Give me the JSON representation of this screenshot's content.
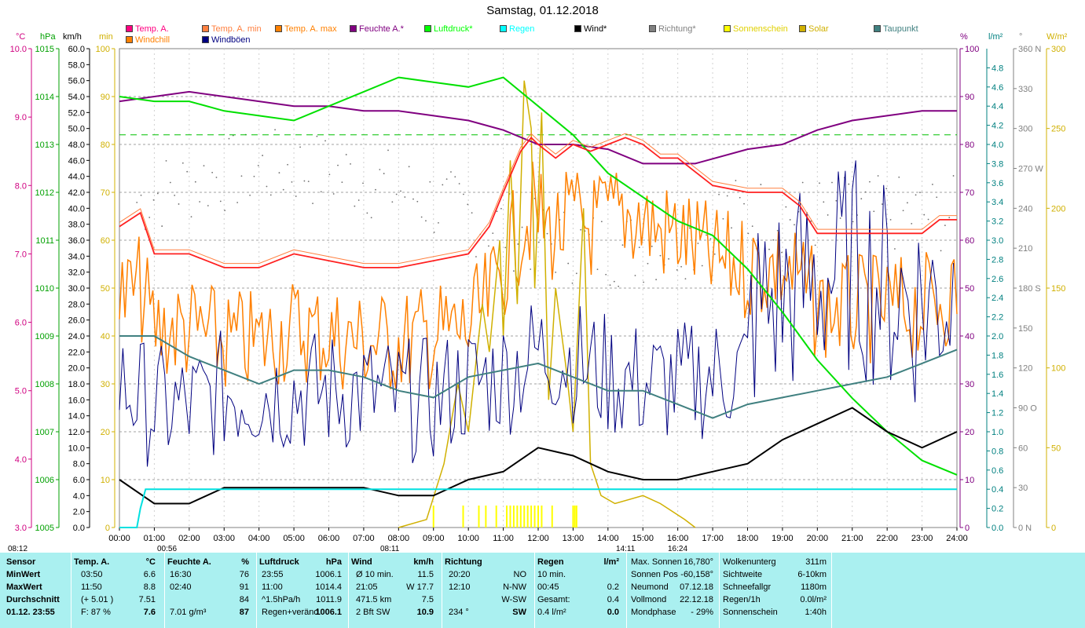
{
  "title": "Samstag, 01.12.2018",
  "legend": [
    {
      "label": "Temp. A.",
      "color": "#ff0080"
    },
    {
      "label": "Temp. A. min",
      "color": "#ff8040"
    },
    {
      "label": "Temp. A. max",
      "color": "#ff8000"
    },
    {
      "label": "Feuchte A.*",
      "color": "#800080"
    },
    {
      "label": "Luftdruck*",
      "color": "#00ff00"
    },
    {
      "label": "Regen",
      "color": "#00ffff"
    },
    {
      "label": "Wind*",
      "color": "#000000"
    },
    {
      "label": "Richtung*",
      "color": "#808080"
    },
    {
      "label": "Sonnenschein",
      "color": "#ffff00"
    },
    {
      "label": "Solar",
      "color": "#d0b000"
    },
    {
      "label": "Taupunkt",
      "color": "#408080"
    },
    {
      "label": "Windchill",
      "color": "#ff8000"
    },
    {
      "label": "Windböen",
      "color": "#000080"
    }
  ],
  "axis_units": {
    "temp": "°C",
    "press": "hPa",
    "wind": "km/h",
    "sun": "min",
    "hum": "%",
    "rain": "l/m²",
    "dir": "°",
    "solar": "W/m²"
  },
  "chart_data": {
    "type": "line",
    "title": "Samstag, 01.12.2018",
    "x": {
      "ticks": [
        "00:00",
        "01:00",
        "02:00",
        "03:00",
        "04:00",
        "05:00",
        "06:00",
        "07:00",
        "08:00",
        "09:00",
        "10:00",
        "11:00",
        "12:00",
        "13:00",
        "14:00",
        "15:00",
        "16:00",
        "17:00",
        "18:00",
        "19:00",
        "20:00",
        "21:00",
        "22:00",
        "23:00",
        "24:00"
      ],
      "range_h": [
        0,
        24
      ]
    },
    "axes": {
      "temp": {
        "unit": "°C",
        "range": [
          3.0,
          10.0
        ],
        "ticks": [
          "3.0",
          "4.0",
          "5.0",
          "6.0",
          "7.0",
          "8.0",
          "9.0",
          "10.0"
        ]
      },
      "press": {
        "unit": "hPa",
        "range": [
          1005,
          1015
        ],
        "ticks": [
          "1005",
          "1006",
          "1007",
          "1008",
          "1009",
          "1010",
          "1011",
          "1012",
          "1013",
          "1014",
          "1015"
        ]
      },
      "wind": {
        "unit": "km/h",
        "range": [
          0,
          60
        ],
        "ticks": [
          "0.0",
          "2.0",
          "4.0",
          "6.0",
          "8.0",
          "10.0",
          "12.0",
          "14.0",
          "16.0",
          "18.0",
          "20.0",
          "22.0",
          "24.0",
          "26.0",
          "28.0",
          "30.0",
          "32.0",
          "34.0",
          "36.0",
          "38.0",
          "40.0",
          "42.0",
          "44.0",
          "46.0",
          "48.0",
          "50.0",
          "52.0",
          "54.0",
          "56.0",
          "58.0",
          "60.0"
        ]
      },
      "sun": {
        "unit": "min",
        "range": [
          0,
          100
        ],
        "ticks": [
          "0",
          "10",
          "20",
          "30",
          "40",
          "50",
          "60",
          "70",
          "80",
          "90",
          "100"
        ]
      },
      "hum": {
        "unit": "%",
        "range": [
          0,
          100
        ],
        "ticks": [
          "0",
          "10",
          "20",
          "30",
          "40",
          "50",
          "60",
          "70",
          "80",
          "90",
          "100"
        ]
      },
      "rain": {
        "unit": "l/m²",
        "range": [
          0,
          5.0
        ],
        "ticks": [
          "0.0",
          "0.2",
          "0.4",
          "0.6",
          "0.8",
          "1.0",
          "1.2",
          "1.4",
          "1.6",
          "1.8",
          "2.0",
          "2.2",
          "2.4",
          "2.6",
          "2.8",
          "3.0",
          "3.2",
          "3.4",
          "3.6",
          "3.8",
          "4.0",
          "4.2",
          "4.4",
          "4.6",
          "4.8"
        ]
      },
      "dir": {
        "unit": "°",
        "range": [
          0,
          360
        ],
        "ticks": [
          "0 N",
          "30",
          "60",
          "90 O",
          "120",
          "150",
          "180 S",
          "210",
          "240",
          "270 W",
          "300",
          "330",
          "360 N"
        ]
      },
      "solar": {
        "unit": "W/m²",
        "range": [
          0,
          300
        ],
        "ticks": [
          "0",
          "50",
          "100",
          "150",
          "200",
          "250",
          "300"
        ]
      }
    },
    "series": [
      {
        "name": "Temp. A.",
        "axis": "temp",
        "color": "#ff2020",
        "points": [
          [
            0,
            7.4
          ],
          [
            0.6,
            7.6
          ],
          [
            1,
            7.0
          ],
          [
            2,
            7.0
          ],
          [
            3,
            6.8
          ],
          [
            4,
            6.8
          ],
          [
            5,
            7.0
          ],
          [
            6,
            6.9
          ],
          [
            7,
            6.8
          ],
          [
            8,
            6.8
          ],
          [
            9,
            6.9
          ],
          [
            10,
            7.0
          ],
          [
            10.6,
            7.4
          ],
          [
            11,
            7.9
          ],
          [
            11.5,
            8.5
          ],
          [
            11.8,
            8.7
          ],
          [
            12,
            8.6
          ],
          [
            12.5,
            8.4
          ],
          [
            13,
            8.6
          ],
          [
            13.5,
            8.5
          ],
          [
            14,
            8.6
          ],
          [
            14.5,
            8.7
          ],
          [
            15,
            8.6
          ],
          [
            15.5,
            8.4
          ],
          [
            16,
            8.4
          ],
          [
            16.5,
            8.2
          ],
          [
            17,
            8.0
          ],
          [
            18,
            7.9
          ],
          [
            19,
            7.9
          ],
          [
            19.5,
            7.7
          ],
          [
            20,
            7.3
          ],
          [
            20.5,
            7.3
          ],
          [
            21,
            7.3
          ],
          [
            22,
            7.3
          ],
          [
            23,
            7.3
          ],
          [
            23.5,
            7.5
          ],
          [
            24,
            7.5
          ]
        ]
      },
      {
        "name": "Feuchte A.*",
        "axis": "hum",
        "color": "#800080",
        "points": [
          [
            0,
            89
          ],
          [
            1,
            90
          ],
          [
            2,
            91
          ],
          [
            3,
            90
          ],
          [
            4,
            89
          ],
          [
            5,
            88
          ],
          [
            6,
            88
          ],
          [
            7,
            87
          ],
          [
            8,
            87
          ],
          [
            9,
            86
          ],
          [
            10,
            85
          ],
          [
            11,
            83
          ],
          [
            12,
            80
          ],
          [
            13,
            80
          ],
          [
            14,
            79
          ],
          [
            15,
            76
          ],
          [
            16,
            76
          ],
          [
            16.5,
            76
          ],
          [
            17,
            77
          ],
          [
            18,
            79
          ],
          [
            19,
            80
          ],
          [
            20,
            83
          ],
          [
            21,
            85
          ],
          [
            22,
            86
          ],
          [
            23,
            87
          ],
          [
            24,
            87
          ]
        ]
      },
      {
        "name": "Luftdruck*",
        "axis": "press",
        "color": "#00ee00",
        "points": [
          [
            0,
            1014.0
          ],
          [
            1,
            1013.9
          ],
          [
            2,
            1013.9
          ],
          [
            3,
            1013.7
          ],
          [
            4,
            1013.6
          ],
          [
            5,
            1013.5
          ],
          [
            6,
            1013.8
          ],
          [
            7,
            1014.1
          ],
          [
            8,
            1014.4
          ],
          [
            9,
            1014.3
          ],
          [
            10,
            1014.2
          ],
          [
            11,
            1014.4
          ],
          [
            12,
            1013.8
          ],
          [
            13,
            1013.2
          ],
          [
            14,
            1012.4
          ],
          [
            15,
            1011.9
          ],
          [
            16,
            1011.4
          ],
          [
            17,
            1011.1
          ],
          [
            18,
            1010.4
          ],
          [
            19,
            1009.5
          ],
          [
            20,
            1008.5
          ],
          [
            21,
            1007.7
          ],
          [
            22,
            1007.0
          ],
          [
            23,
            1006.4
          ],
          [
            24,
            1006.1
          ]
        ]
      },
      {
        "name": "Wind*",
        "axis": "wind",
        "color": "#000000",
        "points": [
          [
            0,
            6.0
          ],
          [
            1,
            3.0
          ],
          [
            2,
            3.0
          ],
          [
            3,
            5.0
          ],
          [
            4,
            5.0
          ],
          [
            5,
            5.0
          ],
          [
            6,
            5.0
          ],
          [
            7,
            5.0
          ],
          [
            8,
            4.0
          ],
          [
            9,
            4.0
          ],
          [
            10,
            6.0
          ],
          [
            11,
            7.0
          ],
          [
            12,
            10.0
          ],
          [
            13,
            9.0
          ],
          [
            14,
            7.0
          ],
          [
            15,
            6.0
          ],
          [
            16,
            6.0
          ],
          [
            17,
            7.0
          ],
          [
            18,
            8.0
          ],
          [
            19,
            11.0
          ],
          [
            20,
            13.0
          ],
          [
            21,
            15.0
          ],
          [
            22,
            12.0
          ],
          [
            23,
            10.0
          ],
          [
            24,
            12.0
          ]
        ]
      },
      {
        "name": "Taupunkt",
        "axis": "temp",
        "color": "#408080",
        "points": [
          [
            0,
            5.8
          ],
          [
            1,
            5.8
          ],
          [
            2,
            5.5
          ],
          [
            3,
            5.3
          ],
          [
            4,
            5.1
          ],
          [
            5,
            5.3
          ],
          [
            6,
            5.3
          ],
          [
            7,
            5.2
          ],
          [
            8,
            5.0
          ],
          [
            9,
            4.9
          ],
          [
            10,
            5.2
          ],
          [
            11,
            5.3
          ],
          [
            12,
            5.4
          ],
          [
            13,
            5.2
          ],
          [
            14,
            5.0
          ],
          [
            15,
            5.0
          ],
          [
            16,
            4.8
          ],
          [
            17,
            4.6
          ],
          [
            18,
            4.8
          ],
          [
            19,
            4.9
          ],
          [
            20,
            5.0
          ],
          [
            21,
            5.1
          ],
          [
            22,
            5.2
          ],
          [
            23,
            5.4
          ],
          [
            24,
            5.6
          ]
        ]
      },
      {
        "name": "Regen",
        "axis": "rain",
        "color": "#00e0e0",
        "points": [
          [
            0,
            0
          ],
          [
            0.5,
            0
          ],
          [
            0.6,
            0.2
          ],
          [
            0.75,
            0.4
          ],
          [
            24,
            0.4
          ]
        ]
      }
    ],
    "horizontal_reference": {
      "axis": "hum",
      "value": 82,
      "color": "#00c000"
    },
    "sun_markers": {
      "sunrise": "08:12",
      "noon": "08:11",
      "sunset": "16:24",
      "other": "00:56",
      "mid": "14:11"
    }
  },
  "panel": {
    "sensor": {
      "h": "Sensor",
      "rows": [
        "MinWert",
        "MaxWert",
        "Durchschnitt",
        "01.12.  23:55"
      ]
    },
    "temp": {
      "h": "Temp. A.",
      "u": "°C",
      "rows": [
        [
          "03:50",
          "6.6"
        ],
        [
          "11:50",
          "8.8"
        ],
        [
          "(+ 5.01 )",
          "7.51"
        ],
        [
          "F: 87 %",
          "7.6"
        ]
      ]
    },
    "hum": {
      "h": "Feuchte A.",
      "u": "%",
      "rows": [
        [
          "16:30",
          "76"
        ],
        [
          "02:40",
          "91"
        ],
        [
          "",
          "84"
        ],
        [
          "7.01 g/m³",
          "87"
        ]
      ]
    },
    "press": {
      "h": "Luftdruck",
      "u": "hPa",
      "rows": [
        [
          "23:55",
          "1006.1"
        ],
        [
          "11:00",
          "1014.4"
        ],
        [
          "^1.5hPa/h",
          "1011.9"
        ],
        [
          "Regen+veränd.",
          "1006.1"
        ]
      ]
    },
    "wind": {
      "h": "Wind",
      "u": "km/h",
      "rows": [
        [
          "Ø 10 min.",
          "11.5"
        ],
        [
          "21:05",
          "W 17.7"
        ],
        [
          "471.5 km",
          "7.5"
        ],
        [
          "2 Bft SW",
          "10.9"
        ]
      ]
    },
    "dir": {
      "h": "Richtung",
      "rows": [
        [
          "20:20",
          "NO"
        ],
        [
          "12:10",
          "N-NW"
        ],
        [
          "",
          "W-SW"
        ],
        [
          "234 °",
          "SW"
        ]
      ]
    },
    "rain": {
      "h": "Regen",
      "u": "l/m²",
      "rows": [
        [
          "10 min.",
          ""
        ],
        [
          "00:45",
          "0.2"
        ],
        [
          "Gesamt:",
          "0.4"
        ],
        [
          "0.4 l/m²",
          "0.0"
        ]
      ]
    },
    "sun": {
      "rows": [
        [
          "Max. Sonnen",
          "16,780°"
        ],
        [
          "Sonnen Pos",
          "-60,158°"
        ],
        [
          "Neumond",
          "07.12.18"
        ],
        [
          "Vollmond",
          "22.12.18"
        ],
        [
          "Mondphase",
          "- 29%"
        ]
      ]
    },
    "cloud": {
      "rows": [
        [
          "Wolkenunterg",
          "311m"
        ],
        [
          "Sichtweite",
          "6-10km"
        ],
        [
          "Schneefallgr",
          "1180m"
        ],
        [
          "Regen/1h",
          "0.0l/m²"
        ],
        [
          "Sonnenschein",
          "1:40h"
        ]
      ]
    }
  }
}
